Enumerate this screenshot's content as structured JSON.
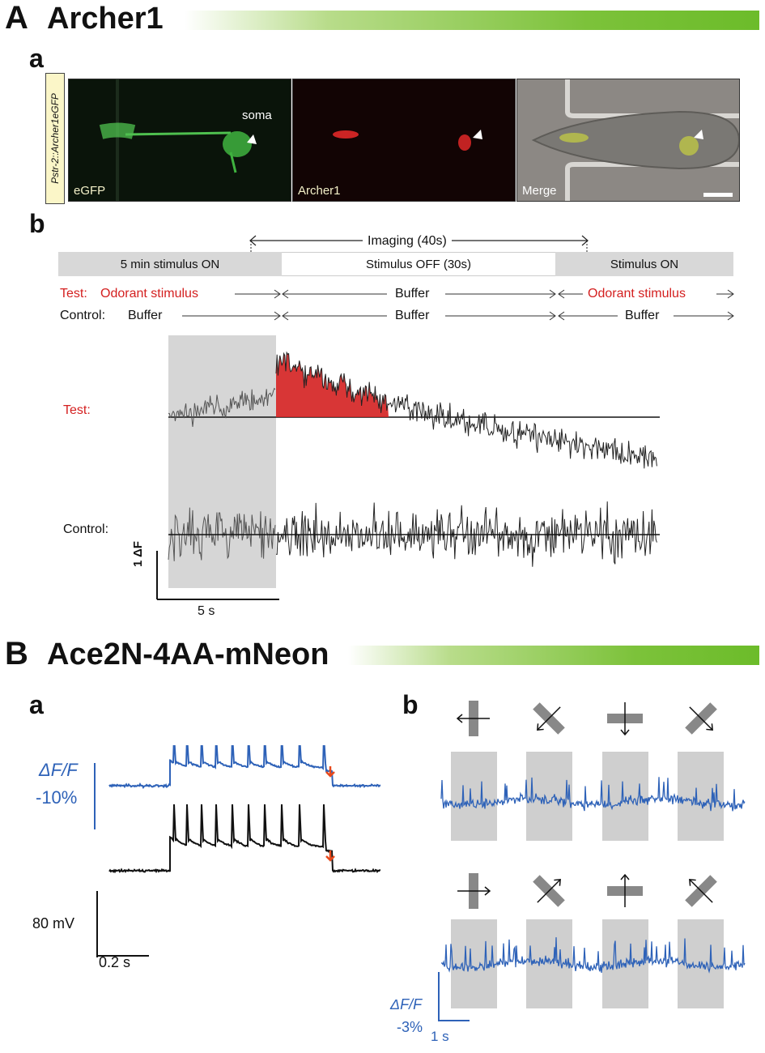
{
  "panelA": {
    "letter": "A",
    "title": "Archer1",
    "sub_a": "a",
    "sub_b": "b",
    "construct_label": "Pstr-2::Archer1eGFP",
    "images": [
      {
        "label": "eGFP"
      },
      {
        "label": "Archer1"
      },
      {
        "label": "Merge"
      }
    ],
    "soma_label": "soma",
    "imaging_label": "Imaging (40s)",
    "timeline": {
      "seg1": "5 min stimulus ON",
      "seg2": "Stimulus OFF (30s)",
      "seg3": "Stimulus ON"
    },
    "test_row": {
      "prefix": "Test:",
      "item1": "Odorant stimulus",
      "item2": "Buffer",
      "item3": "Odorant stimulus"
    },
    "control_row": {
      "prefix": "Control:",
      "item1": "Buffer",
      "item2": "Buffer",
      "item3": "Buffer"
    },
    "trace_labels": {
      "test": "Test:",
      "control": "Control:"
    },
    "scale": {
      "y": "1 ΔF",
      "x": "5 s"
    }
  },
  "panelB": {
    "letter": "B",
    "title": "Ace2N-4AA-mNeon",
    "sub_a": "a",
    "sub_b": "b",
    "a_y_label_1": "ΔF/F",
    "a_y_label_2": "-10%",
    "a_mv_label": "80 mV",
    "a_time_label": "0.2 s",
    "b_y_label_1": "ΔF/F",
    "b_y_label_2": "-3%",
    "b_time_label": "1 s",
    "colors": {
      "blue": "#2e62b8",
      "orange": "#e8491c",
      "red": "#d42020",
      "green": "#6cbc2a"
    }
  }
}
